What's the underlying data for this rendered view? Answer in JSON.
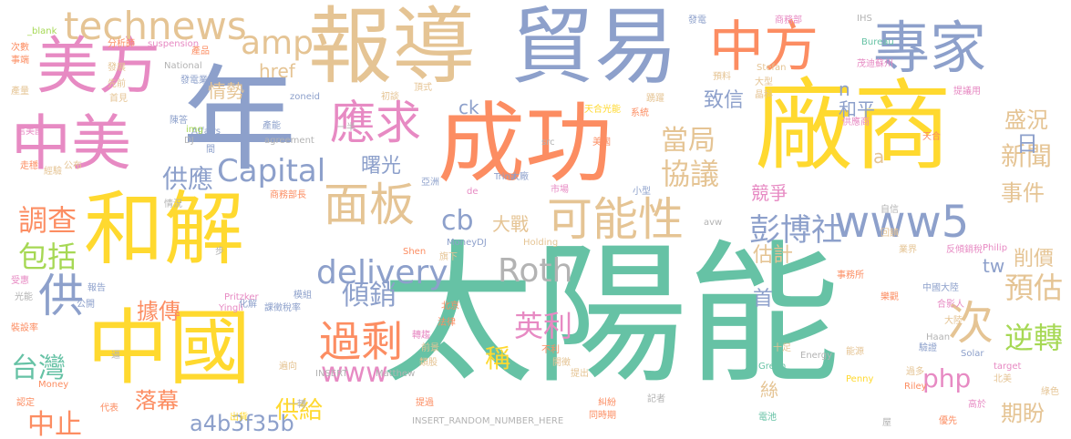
{
  "palette": {
    "teal": "#66c2a5",
    "orange": "#fc8d62",
    "blue": "#8da0cb",
    "pink": "#e78ac3",
    "green": "#a6d854",
    "yellow": "#ffd92f",
    "tan": "#e5c494",
    "gray": "#b3b3b3"
  },
  "words": [
    "太陽能",
    "年",
    "廠商",
    "成功",
    "報導",
    "貿易",
    "和解",
    "中國",
    "美方",
    "中美",
    "專家",
    "中方",
    "應求",
    "面板",
    "可能性",
    "www5",
    "technews",
    "amp",
    "delivery",
    "Roth",
    "Capital",
    "cb",
    "彭博社",
    "協議",
    "當局",
    "過剩",
    "調查",
    "包括",
    "供",
    "台灣",
    "中止",
    "www",
    "php",
    "次",
    "預估",
    "逆轉",
    "英利",
    "稱",
    "傾銷",
    "供應",
    "曙光",
    "據傳",
    "落幕",
    "供給",
    "a4b3f35b",
    "新聞",
    "盛況",
    "日",
    "事件",
    "期盼",
    "削價",
    "tw",
    "大戰",
    "估計",
    "首",
    "絲",
    "競爭",
    "致信",
    "和平",
    "情勢",
    "href",
    "ck",
    "n",
    "a",
    "zoneid"
  ],
  "small_words": [
    "_blank",
    "分析師",
    "suspension",
    "產品",
    "發電",
    "商務部",
    "IHS",
    "Bureau",
    "茂迪蘇州",
    "次數",
    "事端",
    "發展",
    "National",
    "發電業",
    "預料",
    "Stefan",
    "大型",
    "晶科",
    "先前",
    "產量",
    "首見",
    "初談",
    "頂式",
    "踴躍",
    "天合光能",
    "系統",
    "供應商",
    "天合",
    "提議用",
    "信美國",
    "陳答",
    "產能",
    "一半",
    "agreement",
    "src",
    "美國",
    "亞洲",
    "de",
    "Trina",
    "大廠",
    "市場",
    "小型",
    "Affairs",
    "DJ",
    "img",
    "間",
    "走穩",
    "經驗",
    "公布",
    "商務部長",
    "情況",
    "avw",
    "自信",
    "Shen",
    "MoneyDJ",
    "Holding",
    "旗下",
    "回饋",
    "業界",
    "反傾銷稅",
    "步",
    "受惠",
    "光能",
    "報告",
    "Pritzker",
    "Yingli",
    "化解",
    "模組",
    "課徵稅率",
    "北京",
    "事務所",
    "合影人",
    "中國大陸",
    "裝設率",
    "公開",
    "法律",
    "轉趨",
    "樂觀",
    "驗證",
    "Philip",
    "逼",
    "前景",
    "不利",
    "開徵",
    "大陸",
    "遍向",
    "INSERT",
    "Matthew",
    "十足",
    "Green",
    "能源",
    "Energy",
    "Haan",
    "Solar",
    "Money",
    "類股",
    "提出",
    "過多",
    "北美",
    "認定",
    "Riley",
    "Penny",
    "target",
    "綠色",
    "代表",
    "出貨",
    "INSERT_RANDOM_NUMBER_HERE",
    "同時期",
    "提過",
    "糾紛",
    "記者",
    "電池",
    "屋",
    "優先",
    "高於",
    "一轉"
  ]
}
